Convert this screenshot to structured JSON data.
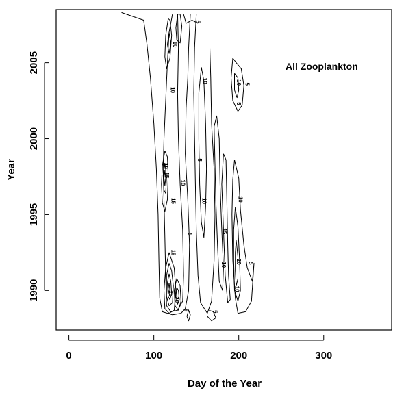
{
  "chart_data": {
    "type": "contour",
    "annotation": "All Zooplankton",
    "xlabel": "Day of the Year",
    "ylabel": "Year",
    "xlim": [
      -15,
      380
    ],
    "ylim": [
      1987.4,
      2008.5
    ],
    "x_ticks": [
      0,
      100,
      200,
      300
    ],
    "y_ticks": [
      1990,
      1995,
      2000,
      2005
    ],
    "x_tick_labels": [
      "0",
      "100",
      "200",
      "300"
    ],
    "y_tick_labels": [
      "1990",
      "1995",
      "2000",
      "2005"
    ],
    "contour_labels": [
      {
        "text": "5",
        "x": 150,
        "y": 2007.7
      },
      {
        "text": "10",
        "x": 123,
        "y": 2006.2
      },
      {
        "text": "10",
        "x": 120,
        "y": 2003.2
      },
      {
        "text": "10",
        "x": 198,
        "y": 2003.7
      },
      {
        "text": "5",
        "x": 208,
        "y": 2003.6
      },
      {
        "text": "5",
        "x": 198,
        "y": 2002.3
      },
      {
        "text": "10",
        "x": 158,
        "y": 2003.8
      },
      {
        "text": "10",
        "x": 112,
        "y": 1998.2
      },
      {
        "text": "15",
        "x": 113,
        "y": 1997.6
      },
      {
        "text": "10",
        "x": 132,
        "y": 1997.1
      },
      {
        "text": "15",
        "x": 121,
        "y": 1995.9
      },
      {
        "text": "5",
        "x": 152,
        "y": 1998.6
      },
      {
        "text": "10",
        "x": 157,
        "y": 1995.9
      },
      {
        "text": "10",
        "x": 200,
        "y": 1996.0
      },
      {
        "text": "5",
        "x": 140,
        "y": 1993.7
      },
      {
        "text": "15",
        "x": 181,
        "y": 1993.9
      },
      {
        "text": "15",
        "x": 121,
        "y": 1992.5
      },
      {
        "text": "10",
        "x": 180,
        "y": 1991.7
      },
      {
        "text": "20",
        "x": 198,
        "y": 1991.9
      },
      {
        "text": "5",
        "x": 212,
        "y": 1991.8
      },
      {
        "text": "10",
        "x": 196,
        "y": 1990.1
      },
      {
        "text": "25",
        "x": 118,
        "y": 1989.8
      },
      {
        "text": "20",
        "x": 125,
        "y": 1989.4
      },
      {
        "text": "5",
        "x": 136,
        "y": 1988.7
      },
      {
        "text": "5",
        "x": 170,
        "y": 1988.6
      }
    ],
    "contours": [
      {
        "name": "outer envelope left",
        "points": [
          [
            62,
            2008.3
          ],
          [
            88,
            2007.8
          ],
          [
            92,
            2006.2
          ],
          [
            96,
            2004
          ],
          [
            100,
            2001
          ],
          [
            103,
            1998
          ],
          [
            105,
            1995
          ],
          [
            106,
            1992
          ],
          [
            107,
            1989.5
          ],
          [
            110,
            1988.6
          ],
          [
            122,
            1988.4
          ],
          [
            132,
            1988.5
          ],
          [
            137,
            1988.8
          ],
          [
            141,
            1990
          ],
          [
            142,
            1993
          ],
          [
            140,
            1996
          ],
          [
            137,
            1999
          ],
          [
            138,
            2002
          ],
          [
            140,
            2004
          ],
          [
            141,
            2006
          ],
          [
            143,
            2008.2
          ]
        ]
      },
      {
        "name": "left column inner 1",
        "points": [
          [
            122,
            2008.2
          ],
          [
            118,
            2007
          ],
          [
            116,
            2005
          ],
          [
            114,
            2002.5
          ],
          [
            112,
            2000
          ],
          [
            111,
            1998
          ],
          [
            112,
            1996
          ],
          [
            113,
            1993.5
          ],
          [
            114,
            1991
          ],
          [
            115,
            1989
          ],
          [
            120,
            1988.6
          ],
          [
            128,
            1988.7
          ],
          [
            134,
            1989.3
          ],
          [
            135,
            1991
          ],
          [
            134,
            1994
          ],
          [
            131,
            1997
          ],
          [
            129,
            2000
          ],
          [
            128,
            2003
          ],
          [
            129,
            2006
          ],
          [
            128,
            2008.2
          ]
        ]
      },
      {
        "name": "left top ring 1",
        "points": [
          [
            117,
            2007.9
          ],
          [
            114,
            2006.8
          ],
          [
            113,
            2005.4
          ],
          [
            115,
            2004.6
          ],
          [
            119,
            2005.3
          ],
          [
            121,
            2006.8
          ],
          [
            119,
            2007.8
          ],
          [
            117,
            2007.9
          ]
        ]
      },
      {
        "name": "left top ring 2",
        "points": [
          [
            118,
            2007.0
          ],
          [
            116,
            2006.2
          ],
          [
            118,
            2005.6
          ],
          [
            120,
            2006.3
          ],
          [
            118,
            2007.0
          ]
        ]
      },
      {
        "name": "top middle ring",
        "points": [
          [
            128,
            2008.2
          ],
          [
            126,
            2007.3
          ],
          [
            127,
            2006.5
          ],
          [
            131,
            2006.3
          ],
          [
            133,
            2007.4
          ],
          [
            131,
            2008.2
          ],
          [
            128,
            2008.2
          ]
        ]
      },
      {
        "name": "top right whip",
        "points": [
          [
            135,
            2008.2
          ],
          [
            138,
            2007.6
          ],
          [
            145,
            2007.8
          ],
          [
            152,
            2007.6
          ]
        ]
      },
      {
        "name": "left mid ring 1",
        "points": [
          [
            113,
            1999.2
          ],
          [
            110,
            1998.2
          ],
          [
            109,
            1997
          ],
          [
            110,
            1995.8
          ],
          [
            113,
            1995.2
          ],
          [
            116,
            1996
          ],
          [
            117,
            1997.6
          ],
          [
            116,
            1998.8
          ],
          [
            113,
            1999.2
          ]
        ]
      },
      {
        "name": "left mid ring 2",
        "points": [
          [
            113,
            1998.4
          ],
          [
            111,
            1997.6
          ],
          [
            112,
            1996.6
          ],
          [
            114,
            1996.4
          ],
          [
            115,
            1997.5
          ],
          [
            113,
            1998.4
          ]
        ]
      },
      {
        "name": "left mid ring 3",
        "points": [
          [
            113,
            1997.9
          ],
          [
            112,
            1997.4
          ],
          [
            113,
            1996.9
          ],
          [
            114,
            1997.4
          ],
          [
            113,
            1997.9
          ]
        ]
      },
      {
        "name": "middle column outer",
        "points": [
          [
            150,
            2008.2
          ],
          [
            148,
            2006
          ],
          [
            147,
            2003
          ],
          [
            148,
            2000
          ],
          [
            149,
            1997
          ],
          [
            150,
            1994
          ],
          [
            152,
            1991
          ],
          [
            155,
            1989.2
          ],
          [
            163,
            1988.5
          ],
          [
            168,
            1989.3
          ],
          [
            171,
            1992
          ],
          [
            172,
            1995
          ],
          [
            171,
            1998
          ],
          [
            168,
            2001
          ],
          [
            167,
            2004
          ],
          [
            166,
            2006
          ],
          [
            166,
            2008.2
          ]
        ]
      },
      {
        "name": "middle column inner",
        "points": [
          [
            156,
            2004.7
          ],
          [
            153,
            2003
          ],
          [
            153,
            2000
          ],
          [
            154,
            1997
          ],
          [
            156,
            1994.5
          ],
          [
            159,
            1993.5
          ],
          [
            161,
            1995.5
          ],
          [
            162,
            1998
          ],
          [
            161,
            2001
          ],
          [
            159,
            2003.8
          ],
          [
            156,
            2004.7
          ]
        ]
      },
      {
        "name": "right column a",
        "points": [
          [
            171,
            2000.8
          ],
          [
            174,
            2001.5
          ],
          [
            177,
            2000
          ],
          [
            178,
            1997
          ],
          [
            180,
            1994
          ],
          [
            182,
            1991.5
          ],
          [
            181,
            1990
          ],
          [
            177,
            1990.6
          ],
          [
            175,
            1993
          ],
          [
            173,
            1996
          ],
          [
            171,
            2000.8
          ]
        ]
      },
      {
        "name": "right column b",
        "points": [
          [
            182,
            1999
          ],
          [
            185,
            1998.6
          ],
          [
            186,
            1996
          ],
          [
            187,
            1993
          ],
          [
            188,
            1991
          ],
          [
            190,
            1989.4
          ],
          [
            187,
            1989.2
          ],
          [
            184,
            1991
          ],
          [
            182,
            1994
          ],
          [
            180,
            1997
          ],
          [
            182,
            1999
          ]
        ]
      },
      {
        "name": "far right column outer",
        "points": [
          [
            195,
            1998.6
          ],
          [
            200,
            1997.4
          ],
          [
            202,
            1995.3
          ],
          [
            206,
            1993
          ],
          [
            210,
            1991.5
          ],
          [
            216,
            1990.6
          ],
          [
            218,
            1991.8
          ],
          [
            215,
            1989.3
          ],
          [
            208,
            1988.6
          ],
          [
            199,
            1988.5
          ],
          [
            196,
            1989.5
          ],
          [
            193,
            1992
          ],
          [
            192,
            1995
          ],
          [
            193,
            1997.3
          ],
          [
            195,
            1998.6
          ]
        ]
      },
      {
        "name": "far right column inner",
        "points": [
          [
            196,
            1995.5
          ],
          [
            199,
            1994.2
          ],
          [
            201,
            1992
          ],
          [
            202,
            1990
          ],
          [
            199,
            1989.3
          ],
          [
            195,
            1990
          ],
          [
            194,
            1992
          ],
          [
            194,
            1994
          ],
          [
            196,
            1995.5
          ]
        ]
      },
      {
        "name": "far right column inner 2",
        "points": [
          [
            197,
            1993.3
          ],
          [
            199,
            1992.2
          ],
          [
            199,
            1990.8
          ],
          [
            197,
            1990.3
          ],
          [
            196,
            1991.3
          ],
          [
            196,
            1992.5
          ],
          [
            197,
            1993.3
          ]
        ]
      },
      {
        "name": "top right blob outer",
        "points": [
          [
            193,
            2005.3
          ],
          [
            197,
            2005
          ],
          [
            203,
            2004.6
          ],
          [
            206,
            2003.5
          ],
          [
            204,
            2002.2
          ],
          [
            199,
            2001.8
          ],
          [
            193,
            2002.5
          ],
          [
            191,
            2004
          ],
          [
            193,
            2005.3
          ]
        ]
      },
      {
        "name": "top right blob inner",
        "points": [
          [
            195,
            2004.3
          ],
          [
            199,
            2004
          ],
          [
            200,
            2003.2
          ],
          [
            198,
            2002.7
          ],
          [
            195,
            2003.2
          ],
          [
            195,
            2004.3
          ]
        ]
      },
      {
        "name": "bottom left core 1",
        "points": [
          [
            118,
            1992.5
          ],
          [
            114,
            1991.5
          ],
          [
            112,
            1990
          ],
          [
            113,
            1988.8
          ],
          [
            118,
            1988.5
          ],
          [
            124,
            1988.7
          ],
          [
            126,
            1990
          ],
          [
            124,
            1991.5
          ],
          [
            118,
            1992.5
          ]
        ]
      },
      {
        "name": "bottom left core 2",
        "points": [
          [
            118,
            1991.8
          ],
          [
            115,
            1991
          ],
          [
            115,
            1989.6
          ],
          [
            118,
            1989
          ],
          [
            122,
            1989.2
          ],
          [
            123,
            1990.3
          ],
          [
            121,
            1991.3
          ],
          [
            118,
            1991.8
          ]
        ]
      },
      {
        "name": "bottom left core 3",
        "points": [
          [
            118,
            1991.1
          ],
          [
            116,
            1990.5
          ],
          [
            117,
            1989.6
          ],
          [
            119,
            1989.4
          ],
          [
            121,
            1989.8
          ],
          [
            120,
            1990.6
          ],
          [
            118,
            1991.1
          ]
        ]
      },
      {
        "name": "bottom left core 4",
        "points": [
          [
            118,
            1990.5
          ],
          [
            117,
            1990.1
          ],
          [
            118,
            1989.8
          ],
          [
            119,
            1990.0
          ],
          [
            118,
            1990.5
          ]
        ]
      },
      {
        "name": "bottom core right 1",
        "points": [
          [
            127,
            1990.8
          ],
          [
            124,
            1990
          ],
          [
            125,
            1989
          ],
          [
            129,
            1988.7
          ],
          [
            132,
            1989.3
          ],
          [
            131,
            1990.3
          ],
          [
            127,
            1990.8
          ]
        ]
      },
      {
        "name": "bottom core right 2",
        "points": [
          [
            127,
            1990.2
          ],
          [
            126,
            1989.6
          ],
          [
            128,
            1989.1
          ],
          [
            130,
            1989.4
          ],
          [
            129,
            1990.0
          ],
          [
            127,
            1990.2
          ]
        ]
      },
      {
        "name": "bottom small ring",
        "points": [
          [
            139,
            1988.3
          ],
          [
            141,
            1988.0
          ],
          [
            143,
            1988.4
          ],
          [
            141,
            1988.7
          ],
          [
            139,
            1988.3
          ]
        ]
      },
      {
        "name": "bottom right squiggle",
        "points": [
          [
            163,
            1988.3
          ],
          [
            168,
            1988.0
          ],
          [
            173,
            1988.2
          ],
          [
            170,
            1988.6
          ],
          [
            165,
            1988.7
          ]
        ]
      }
    ]
  }
}
